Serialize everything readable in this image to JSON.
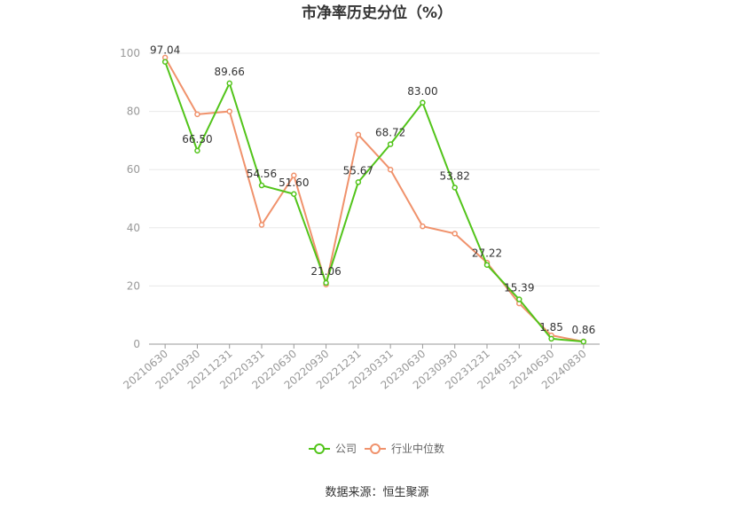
{
  "chart_data": {
    "type": "line",
    "title": "市净率历史分位（%）",
    "categories": [
      "20210630",
      "20210930",
      "20211231",
      "20220331",
      "20220630",
      "20220930",
      "20221231",
      "20230331",
      "20230630",
      "20230930",
      "20231231",
      "20240331",
      "20240630",
      "20240830"
    ],
    "series": [
      {
        "name": "公司",
        "color": "#52c41a",
        "values": [
          97.04,
          66.5,
          89.66,
          54.56,
          51.6,
          21.06,
          55.67,
          68.72,
          83.0,
          53.82,
          27.22,
          15.39,
          1.85,
          0.86
        ],
        "labels": [
          "97.04",
          "66.50",
          "89.66",
          "54.56",
          "51.60",
          "21.06",
          "55.67",
          "68.72",
          "83.00",
          "53.82",
          "27.22",
          "15.39",
          "1.85",
          "0.86"
        ]
      },
      {
        "name": "行业中位数",
        "color": "#f0926c",
        "values": [
          98.5,
          79.0,
          80.0,
          41.0,
          58.0,
          20.5,
          72.0,
          60.0,
          40.5,
          38.0,
          28.0,
          14.0,
          3.0,
          0.9
        ]
      }
    ],
    "ylim": [
      0,
      100
    ],
    "yticks": [
      "0",
      "20",
      "40",
      "60",
      "80",
      "100"
    ],
    "ytick_values": [
      0,
      20,
      40,
      60,
      80,
      100
    ],
    "grid": true,
    "legend": "bottom-center",
    "source": "数据来源：恒生聚源"
  }
}
